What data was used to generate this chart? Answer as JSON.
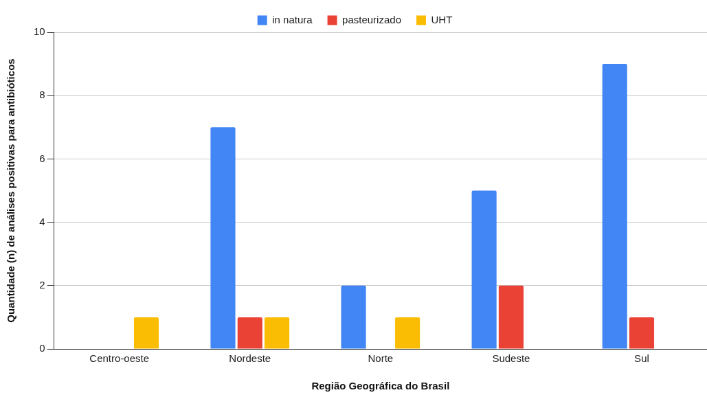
{
  "chart_data": {
    "type": "bar",
    "xlabel": "Região Geográfica do Brasil",
    "ylabel": "Quantidade (n) de análises positivas para antibióticos",
    "categories": [
      "Centro-oeste",
      "Nordeste",
      "Norte",
      "Sudeste",
      "Sul"
    ],
    "series": [
      {
        "name": "in natura",
        "color": "#4285f4",
        "values": [
          0,
          7,
          2,
          5,
          9
        ]
      },
      {
        "name": "pasteurizado",
        "color": "#ea4335",
        "values": [
          0,
          1,
          0,
          2,
          1
        ]
      },
      {
        "name": "UHT",
        "color": "#fbbc04",
        "values": [
          1,
          1,
          1,
          0,
          0
        ]
      }
    ],
    "ylim": [
      0,
      10
    ],
    "yticks": [
      0,
      2,
      4,
      6,
      8,
      10
    ],
    "grid": "y",
    "legend": "top"
  }
}
